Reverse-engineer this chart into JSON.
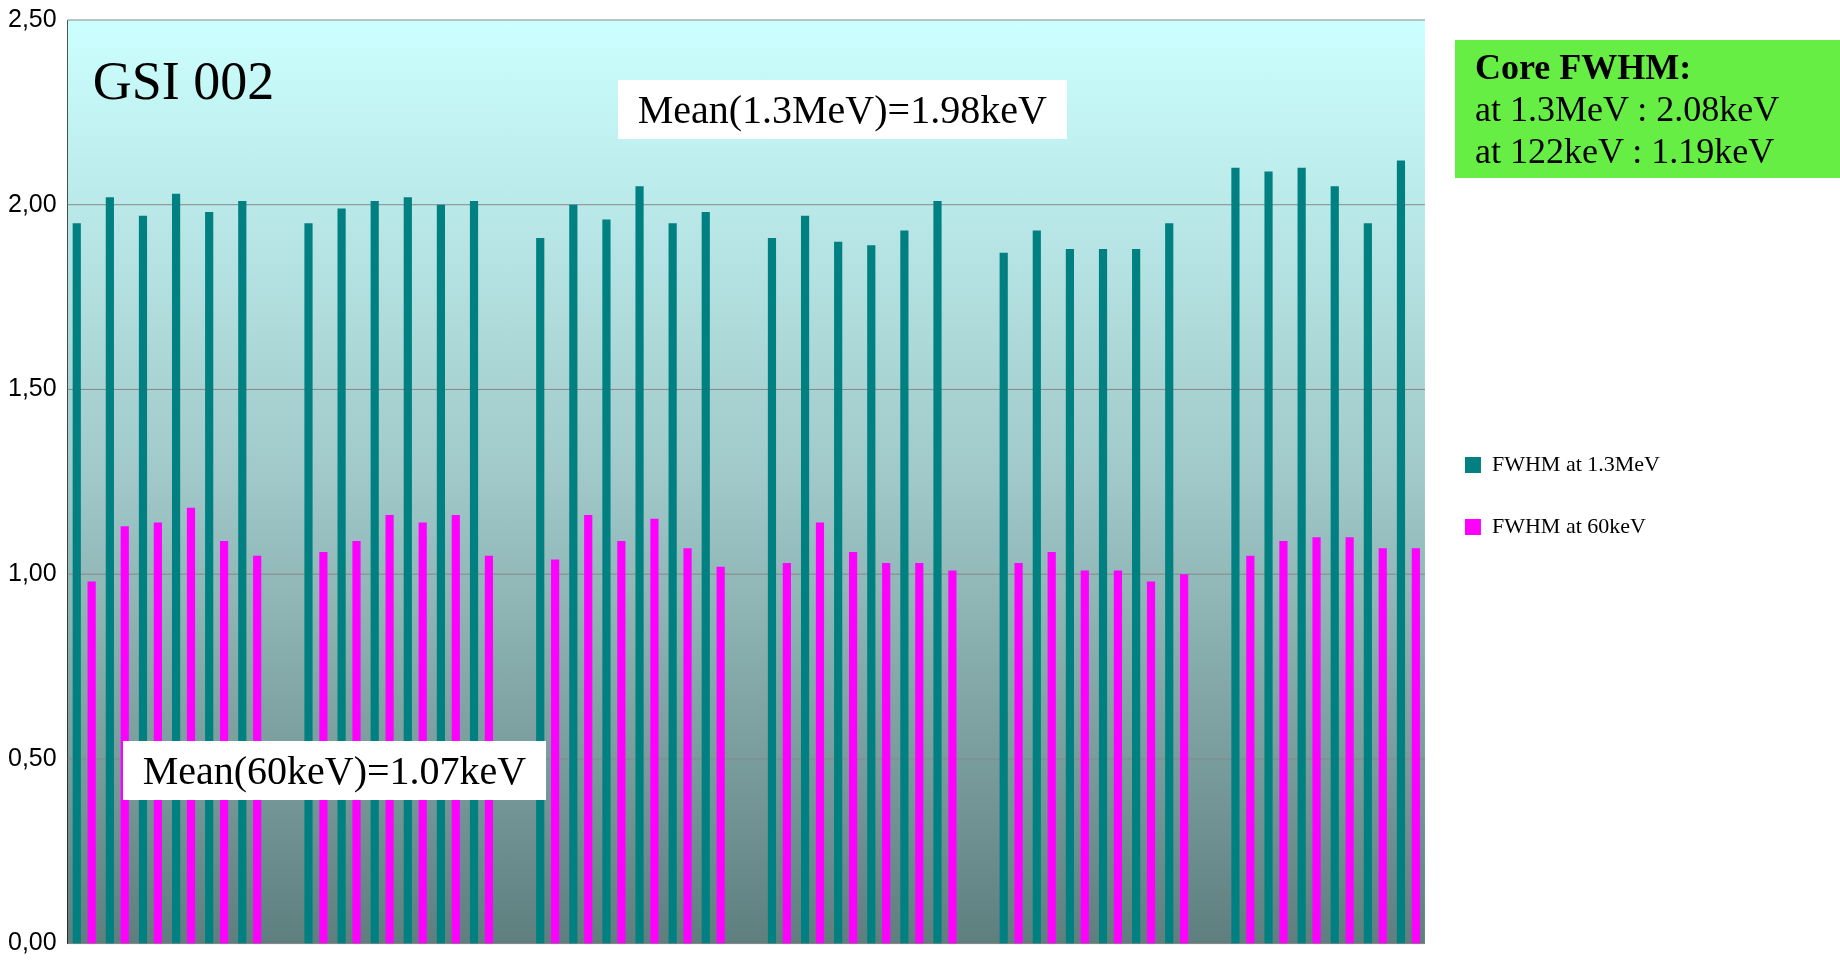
{
  "chart_data": {
    "type": "bar",
    "categories": [
      null,
      null,
      null,
      null,
      null,
      null,
      null,
      null,
      null,
      null,
      null,
      null,
      null,
      null,
      null,
      null,
      null,
      null,
      null,
      null,
      null,
      null,
      null,
      null,
      null,
      null,
      null,
      null,
      null,
      null,
      null,
      null,
      null,
      null,
      null,
      null,
      null,
      null,
      null,
      null,
      null
    ],
    "series": [
      {
        "name": "FWHM at 1.3MeV",
        "color": "#008080",
        "values": [
          1.95,
          2.02,
          1.97,
          2.03,
          1.98,
          2.01,
          null,
          1.95,
          1.99,
          2.01,
          2.02,
          2.0,
          2.01,
          null,
          1.91,
          2.0,
          1.96,
          2.05,
          1.95,
          1.98,
          null,
          1.91,
          1.97,
          1.9,
          1.89,
          1.93,
          2.01,
          null,
          1.87,
          1.93,
          1.88,
          1.88,
          1.88,
          1.95,
          null,
          2.1,
          2.09,
          2.1,
          2.05,
          1.95,
          2.12
        ]
      },
      {
        "name": "FWHM at 60keV",
        "color": "#ff00ff",
        "values": [
          0.98,
          1.13,
          1.14,
          1.18,
          1.09,
          1.05,
          null,
          1.06,
          1.09,
          1.16,
          1.14,
          1.16,
          1.05,
          null,
          1.04,
          1.16,
          1.09,
          1.15,
          1.07,
          1.02,
          null,
          1.03,
          1.14,
          1.06,
          1.03,
          1.03,
          1.01,
          null,
          1.03,
          1.06,
          1.01,
          1.01,
          0.98,
          1.0,
          null,
          1.05,
          1.09,
          1.1,
          1.1,
          1.07,
          1.07
        ]
      }
    ],
    "ylim": [
      0,
      2.5
    ],
    "yticks": [
      {
        "value": 0,
        "label": "0,00"
      },
      {
        "value": 0.5,
        "label": "0,50"
      },
      {
        "value": 1,
        "label": "1,00"
      },
      {
        "value": 1.5,
        "label": "1,50"
      },
      {
        "value": 2,
        "label": "2,00"
      },
      {
        "value": 2.5,
        "label": "2,50"
      }
    ],
    "grid": "y",
    "legend": "right",
    "annotations": [
      "GSI 002",
      "Mean(1.3MeV)=1.98keV",
      "Mean(60keV)=1.07keV",
      "Core FWHM:\nat 1.3MeV : 2.08keV\nat 122keV : 1.19keV"
    ]
  }
}
